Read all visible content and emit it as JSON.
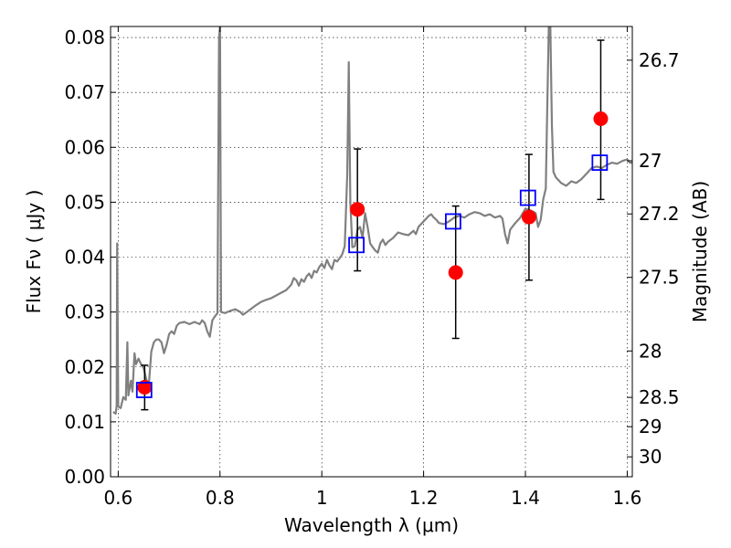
{
  "chart_data": {
    "type": "scatter",
    "xlabel": "Wavelength  λ (μm)",
    "ylabel_left": "Flux  Fν  ( μJy )",
    "ylabel_right": "Magnitude (AB)",
    "xlim": [
      0.585,
      1.61
    ],
    "ylim": [
      0.0,
      0.082
    ],
    "grid": true,
    "x_ticks": [
      0.6,
      0.8,
      1.0,
      1.2,
      1.4,
      1.6
    ],
    "x_tick_labels": [
      "0.6",
      "0.8",
      "1",
      "1.2",
      "1.4",
      "1.6"
    ],
    "y_ticks": [
      0.0,
      0.01,
      0.02,
      0.03,
      0.04,
      0.05,
      0.06,
      0.07,
      0.08
    ],
    "y_tick_labels": [
      "0.00",
      "0.01",
      "0.02",
      "0.03",
      "0.04",
      "0.05",
      "0.06",
      "0.07",
      "0.08"
    ],
    "right_ticks": [
      {
        "mag": 26.7,
        "label": "26.7"
      },
      {
        "mag": 27.0,
        "label": "27"
      },
      {
        "mag": 27.2,
        "label": "27.2"
      },
      {
        "mag": 27.5,
        "label": "27.5"
      },
      {
        "mag": 28.0,
        "label": "28"
      },
      {
        "mag": 28.5,
        "label": "28.5"
      },
      {
        "mag": 29.0,
        "label": "29"
      },
      {
        "mag": 30.0,
        "label": "30"
      }
    ],
    "series": [
      {
        "kind": "line",
        "color": "#808080",
        "points": [
          [
            0.59,
            0.0118
          ],
          [
            0.595,
            0.0115
          ],
          [
            0.597,
            0.013
          ],
          [
            0.598,
            0.0425
          ],
          [
            0.6,
            0.0128
          ],
          [
            0.605,
            0.0125
          ],
          [
            0.61,
            0.0145
          ],
          [
            0.615,
            0.014
          ],
          [
            0.618,
            0.0245
          ],
          [
            0.62,
            0.0148
          ],
          [
            0.625,
            0.0175
          ],
          [
            0.628,
            0.0155
          ],
          [
            0.632,
            0.0225
          ],
          [
            0.635,
            0.0205
          ],
          [
            0.64,
            0.0215
          ],
          [
            0.645,
            0.0205
          ],
          [
            0.65,
            0.0198
          ],
          [
            0.655,
            0.0178
          ],
          [
            0.66,
            0.0165
          ],
          [
            0.665,
            0.0228
          ],
          [
            0.67,
            0.0245
          ],
          [
            0.675,
            0.025
          ],
          [
            0.68,
            0.025
          ],
          [
            0.685,
            0.0245
          ],
          [
            0.69,
            0.0225
          ],
          [
            0.695,
            0.024
          ],
          [
            0.7,
            0.026
          ],
          [
            0.705,
            0.0265
          ],
          [
            0.71,
            0.026
          ],
          [
            0.715,
            0.0275
          ],
          [
            0.72,
            0.028
          ],
          [
            0.73,
            0.0282
          ],
          [
            0.74,
            0.0278
          ],
          [
            0.75,
            0.0282
          ],
          [
            0.76,
            0.0278
          ],
          [
            0.765,
            0.0285
          ],
          [
            0.77,
            0.028
          ],
          [
            0.775,
            0.0265
          ],
          [
            0.78,
            0.0255
          ],
          [
            0.785,
            0.0285
          ],
          [
            0.79,
            0.0292
          ],
          [
            0.795,
            0.0298
          ],
          [
            0.798,
            0.08
          ],
          [
            0.8,
            0.082
          ],
          [
            0.802,
            0.03
          ],
          [
            0.81,
            0.0298
          ],
          [
            0.82,
            0.0302
          ],
          [
            0.83,
            0.0305
          ],
          [
            0.84,
            0.03
          ],
          [
            0.845,
            0.0295
          ],
          [
            0.85,
            0.0298
          ],
          [
            0.86,
            0.0305
          ],
          [
            0.87,
            0.0312
          ],
          [
            0.88,
            0.0318
          ],
          [
            0.89,
            0.0322
          ],
          [
            0.9,
            0.0325
          ],
          [
            0.91,
            0.033
          ],
          [
            0.92,
            0.0335
          ],
          [
            0.93,
            0.034
          ],
          [
            0.94,
            0.035
          ],
          [
            0.945,
            0.0362
          ],
          [
            0.95,
            0.0358
          ],
          [
            0.955,
            0.0348
          ],
          [
            0.96,
            0.036
          ],
          [
            0.965,
            0.0355
          ],
          [
            0.97,
            0.0365
          ],
          [
            0.975,
            0.037
          ],
          [
            0.98,
            0.0362
          ],
          [
            0.985,
            0.0375
          ],
          [
            0.99,
            0.0372
          ],
          [
            0.995,
            0.0382
          ],
          [
            1.0,
            0.0388
          ],
          [
            1.005,
            0.038
          ],
          [
            1.01,
            0.0395
          ],
          [
            1.015,
            0.0385
          ],
          [
            1.02,
            0.0378
          ],
          [
            1.025,
            0.0395
          ],
          [
            1.03,
            0.0392
          ],
          [
            1.035,
            0.0398
          ],
          [
            1.04,
            0.0405
          ],
          [
            1.045,
            0.042
          ],
          [
            1.05,
            0.055
          ],
          [
            1.053,
            0.0755
          ],
          [
            1.056,
            0.05
          ],
          [
            1.06,
            0.0418
          ],
          [
            1.065,
            0.042
          ],
          [
            1.07,
            0.045
          ],
          [
            1.075,
            0.0455
          ],
          [
            1.08,
            0.0435
          ],
          [
            1.085,
            0.048
          ],
          [
            1.09,
            0.0455
          ],
          [
            1.095,
            0.0425
          ],
          [
            1.1,
            0.0418
          ],
          [
            1.105,
            0.0412
          ],
          [
            1.11,
            0.0408
          ],
          [
            1.115,
            0.0425
          ],
          [
            1.12,
            0.0432
          ],
          [
            1.125,
            0.0422
          ],
          [
            1.13,
            0.0428
          ],
          [
            1.14,
            0.0435
          ],
          [
            1.15,
            0.0445
          ],
          [
            1.16,
            0.0442
          ],
          [
            1.17,
            0.044
          ],
          [
            1.18,
            0.0448
          ],
          [
            1.185,
            0.0442
          ],
          [
            1.19,
            0.0455
          ],
          [
            1.2,
            0.0465
          ],
          [
            1.21,
            0.0475
          ],
          [
            1.215,
            0.0478
          ],
          [
            1.22,
            0.0472
          ],
          [
            1.225,
            0.0468
          ],
          [
            1.23,
            0.0462
          ],
          [
            1.24,
            0.046
          ],
          [
            1.25,
            0.0465
          ],
          [
            1.26,
            0.0472
          ],
          [
            1.27,
            0.0475
          ],
          [
            1.28,
            0.0472
          ],
          [
            1.29,
            0.0478
          ],
          [
            1.3,
            0.0482
          ],
          [
            1.31,
            0.048
          ],
          [
            1.32,
            0.0475
          ],
          [
            1.33,
            0.0478
          ],
          [
            1.34,
            0.0472
          ],
          [
            1.35,
            0.0475
          ],
          [
            1.355,
            0.047
          ],
          [
            1.36,
            0.0442
          ],
          [
            1.365,
            0.0425
          ],
          [
            1.37,
            0.045
          ],
          [
            1.38,
            0.0462
          ],
          [
            1.39,
            0.0472
          ],
          [
            1.4,
            0.0488
          ],
          [
            1.41,
            0.0485
          ],
          [
            1.42,
            0.048
          ],
          [
            1.425,
            0.0455
          ],
          [
            1.43,
            0.0468
          ],
          [
            1.435,
            0.0505
          ],
          [
            1.44,
            0.0525
          ],
          [
            1.443,
            0.068
          ],
          [
            1.446,
            0.082
          ],
          [
            1.449,
            0.082
          ],
          [
            1.452,
            0.064
          ],
          [
            1.455,
            0.0555
          ],
          [
            1.46,
            0.0545
          ],
          [
            1.47,
            0.0535
          ],
          [
            1.48,
            0.053
          ],
          [
            1.49,
            0.0538
          ],
          [
            1.5,
            0.0535
          ],
          [
            1.51,
            0.0542
          ],
          [
            1.52,
            0.0552
          ],
          [
            1.53,
            0.0562
          ],
          [
            1.54,
            0.0565
          ],
          [
            1.55,
            0.0562
          ],
          [
            1.56,
            0.0568
          ],
          [
            1.57,
            0.0572
          ],
          [
            1.58,
            0.057
          ],
          [
            1.59,
            0.0575
          ],
          [
            1.6,
            0.0578
          ],
          [
            1.605,
            0.0572
          ],
          [
            1.61,
            0.0572
          ]
        ]
      },
      {
        "kind": "errorbar",
        "color": "#ff0000",
        "marker": "circle",
        "points": [
          {
            "x": 0.652,
            "y": 0.0163,
            "ylo": 0.0122,
            "yhi": 0.0203
          },
          {
            "x": 1.07,
            "y": 0.0487,
            "ylo": 0.0375,
            "yhi": 0.0597
          },
          {
            "x": 1.263,
            "y": 0.0372,
            "ylo": 0.0252,
            "yhi": 0.0493
          },
          {
            "x": 1.407,
            "y": 0.0473,
            "ylo": 0.0358,
            "yhi": 0.0587
          },
          {
            "x": 1.548,
            "y": 0.0652,
            "ylo": 0.0505,
            "yhi": 0.0795
          }
        ]
      },
      {
        "kind": "scatter",
        "color": "#0000ff",
        "marker": "square",
        "points": [
          {
            "x": 0.651,
            "y": 0.0158
          },
          {
            "x": 1.068,
            "y": 0.0422
          },
          {
            "x": 1.258,
            "y": 0.0465
          },
          {
            "x": 1.405,
            "y": 0.0508
          },
          {
            "x": 1.546,
            "y": 0.0572
          }
        ]
      }
    ]
  }
}
